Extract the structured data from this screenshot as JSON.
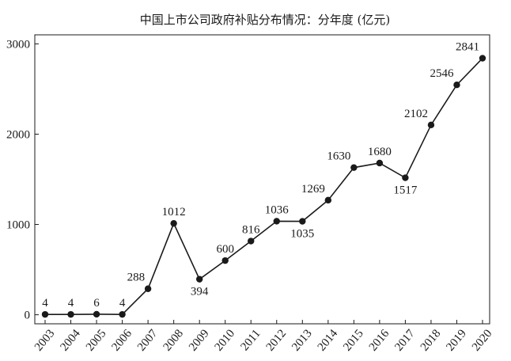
{
  "chart_data": {
    "type": "line",
    "title": "中国上市公司政府补贴分布情况：分年度 (亿元)",
    "xlabel": "",
    "ylabel": "",
    "categories": [
      "2003",
      "2004",
      "2005",
      "2006",
      "2007",
      "2008",
      "2009",
      "2010",
      "2011",
      "2012",
      "2013",
      "2014",
      "2015",
      "2016",
      "2017",
      "2018",
      "2019",
      "2020"
    ],
    "series": [
      {
        "name": "政府补贴",
        "values": [
          4,
          4,
          6,
          4,
          288,
          1012,
          394,
          600,
          816,
          1036,
          1035,
          1269,
          1630,
          1680,
          1517,
          2102,
          2546,
          2841
        ],
        "data_labels": [
          "4",
          "4",
          "6",
          "4",
          "288",
          "1012",
          "394",
          "600",
          "816",
          "1036",
          "1035",
          "1269",
          "1630",
          "1680",
          "1517",
          "2102",
          "2546",
          "2841"
        ]
      }
    ],
    "ylim": [
      -100,
      3100
    ],
    "yticks": [
      0,
      1000,
      2000,
      3000
    ],
    "ytick_labels": [
      "0",
      "1000",
      "2000",
      "3000"
    ],
    "label_position": [
      "above",
      "above",
      "above",
      "above",
      "above-left",
      "above",
      "below",
      "above",
      "above",
      "above",
      "below",
      "above-left",
      "above-left",
      "above",
      "below",
      "above-left",
      "above-left",
      "above-left"
    ],
    "grid": false,
    "legend": "none"
  }
}
